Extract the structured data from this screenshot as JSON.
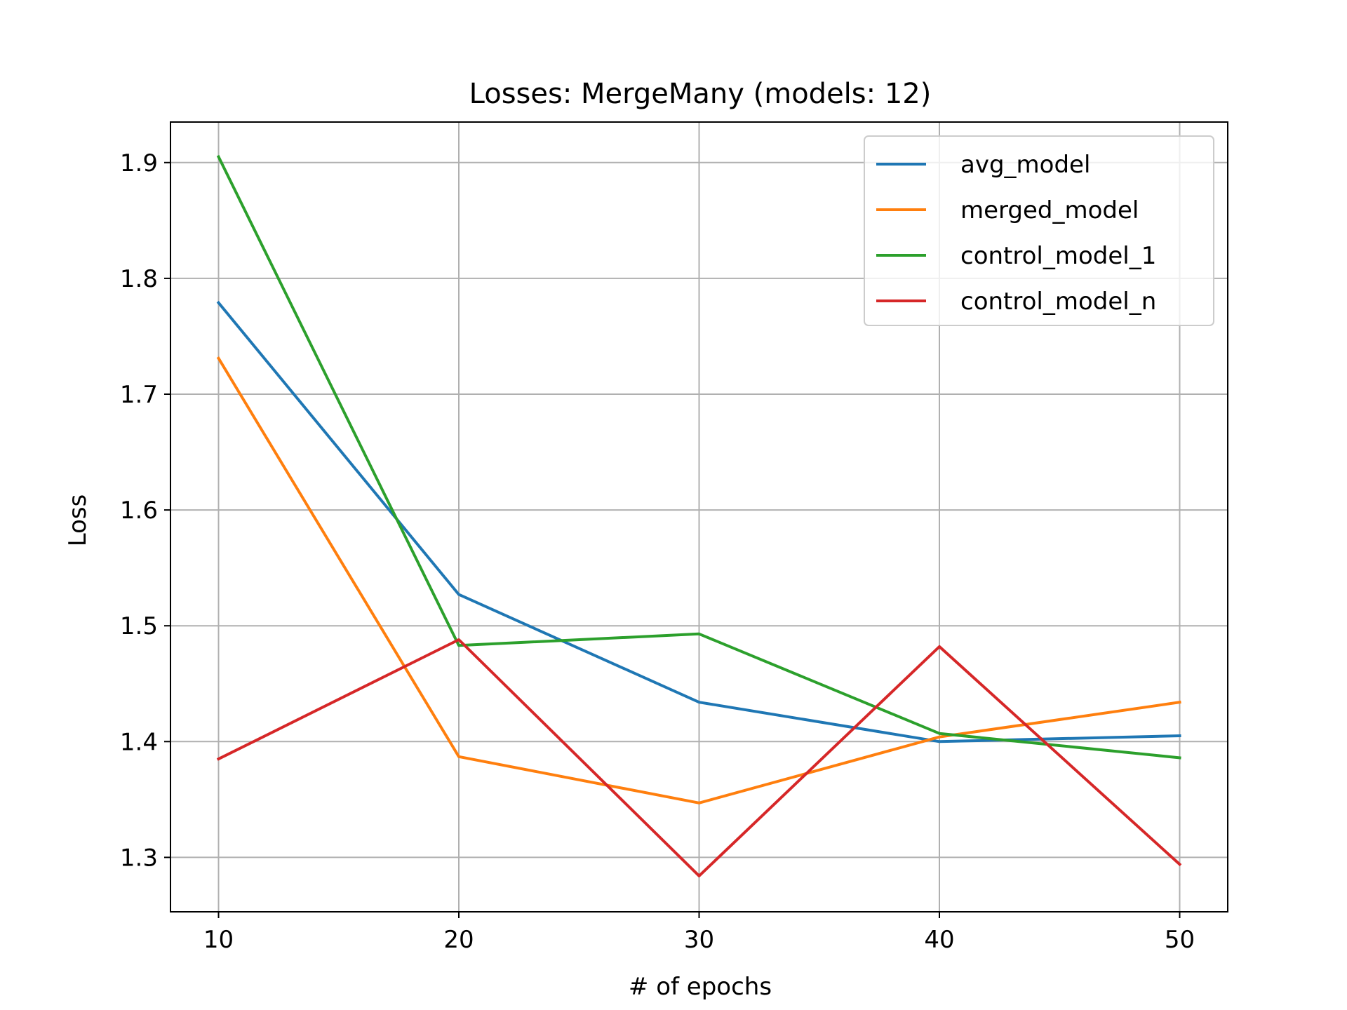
{
  "chart_data": {
    "type": "line",
    "title": "Losses: MergeMany (models: 12)",
    "xlabel": "# of epochs",
    "ylabel": "Loss",
    "x": [
      10,
      20,
      30,
      40,
      50
    ],
    "xlim": [
      8,
      52
    ],
    "ylim": [
      1.253,
      1.935
    ],
    "xticks": [
      10,
      20,
      30,
      40,
      50
    ],
    "yticks": [
      1.3,
      1.4,
      1.5,
      1.6,
      1.7,
      1.8,
      1.9
    ],
    "grid": true,
    "legend_position": "top-right",
    "series": [
      {
        "name": "avg_model",
        "color": "#1f77b4",
        "values": [
          1.779,
          1.527,
          1.434,
          1.4,
          1.405
        ]
      },
      {
        "name": "merged_model",
        "color": "#ff7f0e",
        "values": [
          1.731,
          1.387,
          1.347,
          1.404,
          1.434
        ]
      },
      {
        "name": "control_model_1",
        "color": "#2ca02c",
        "values": [
          1.905,
          1.483,
          1.493,
          1.407,
          1.386
        ]
      },
      {
        "name": "control_model_n",
        "color": "#d62728",
        "values": [
          1.385,
          1.488,
          1.284,
          1.482,
          1.294
        ]
      }
    ]
  }
}
